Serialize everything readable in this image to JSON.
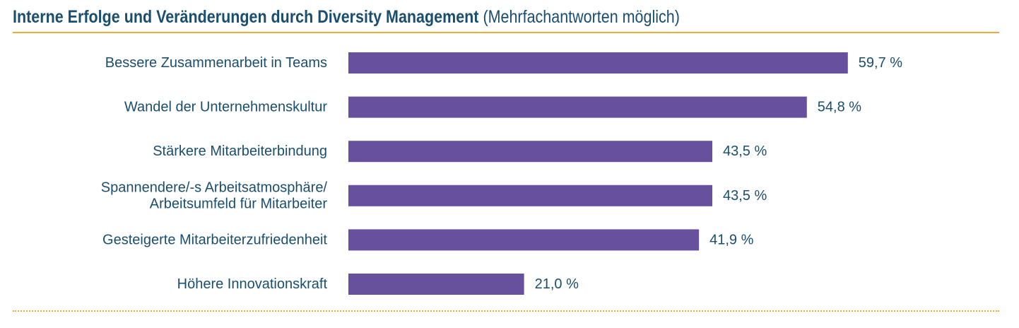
{
  "title": {
    "main": "Interne Erfolge und Veränderungen durch Diversity Management",
    "sub": "(Mehrfachantworten möglich)"
  },
  "colors": {
    "bar": "#67519e",
    "text": "#1a4e6e",
    "accent": "#f2a93b"
  },
  "chart_data": {
    "type": "bar",
    "orientation": "horizontal",
    "title": "Interne Erfolge und Veränderungen durch Diversity Management (Mehrfachantworten möglich)",
    "categories": [
      [
        "Bessere Zusammenarbeit in Teams"
      ],
      [
        "Wandel der Unternehmenskultur"
      ],
      [
        "Stärkere Mitarbeiterbindung"
      ],
      [
        "Spannendere/-s Arbeitsatmosphäre/",
        "Arbeitsumfeld für Mitarbeiter"
      ],
      [
        "Gesteigerte Mitarbeiterzufriedenheit"
      ],
      [
        "Höhere Innovationskraft"
      ]
    ],
    "values": [
      59.7,
      54.8,
      43.5,
      43.5,
      41.9,
      21.0
    ],
    "value_labels": [
      "59,7 %",
      "54,8 %",
      "43,5 %",
      "43,5 %",
      "41,9 %",
      "21,0 %"
    ],
    "unit": "%",
    "xlim": [
      0,
      100
    ],
    "grid": false,
    "legend": "none"
  }
}
